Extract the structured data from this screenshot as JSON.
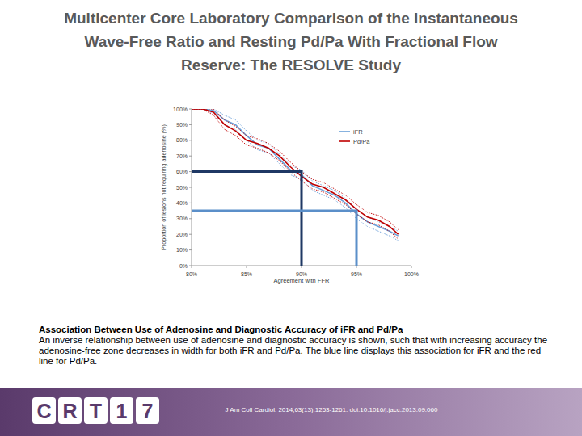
{
  "slide": {
    "title": [
      "Multicenter Core Laboratory Comparison of the Instantaneous",
      "Wave-Free Ratio and Resting Pd/Pa With Fractional Flow",
      "Reserve: The RESOLVE Study"
    ],
    "caption_heading": "Association Between Use of Adenosine and Diagnostic Accuracy of iFR and Pd/Pa",
    "caption_text": "An inverse relationship between use of adenosine and diagnostic accuracy is shown, such that with increasing accuracy the adenosine-free zone decreases in width for both iFR and Pd/Pa. The blue line displays this association for iFR and the red line for Pd/Pa.",
    "logo": "CRT17",
    "citation": "J Am Coll Cardiol. 2014;63(13):1253-1261. doi:10.1016/j.jacc.2013.09.060"
  },
  "chart_data": {
    "type": "line",
    "x_label": "Agreement with FFR",
    "y_label": "Proportion of lesions not requiring adenosine (%)",
    "x": [
      80,
      81,
      82,
      83,
      84,
      85,
      86,
      87,
      88,
      89,
      90,
      91,
      92,
      93,
      94,
      95,
      96,
      97,
      98,
      98.8
    ],
    "series": [
      {
        "name": "iFR",
        "color": "#6a9fd8",
        "line_style": "solid",
        "marker": "none",
        "values": [
          100,
          100,
          99,
          93,
          90,
          83,
          77,
          75,
          68,
          61,
          58,
          51,
          48,
          45,
          40,
          33,
          28,
          25,
          22,
          19
        ],
        "ci_lower": [
          100,
          100,
          97,
          90,
          87,
          80,
          74,
          72,
          65,
          58,
          55,
          48,
          45,
          42,
          37,
          30,
          25,
          22,
          19,
          16
        ],
        "ci_upper": [
          100,
          100,
          100,
          96,
          93,
          86,
          80,
          78,
          71,
          64,
          61,
          54,
          51,
          48,
          43,
          36,
          31,
          28,
          25,
          22
        ]
      },
      {
        "name": "Pd/Pa",
        "color": "#c00000",
        "line_style": "solid",
        "marker": "none",
        "values": [
          100,
          100,
          98,
          90,
          86,
          80,
          78,
          75,
          70,
          63,
          57,
          52,
          50,
          46,
          42,
          36,
          31,
          29,
          25,
          20
        ],
        "ci_lower": [
          100,
          100,
          96,
          87,
          83,
          77,
          75,
          72,
          67,
          60,
          54,
          49,
          47,
          43,
          39,
          33,
          28,
          26,
          22,
          17
        ],
        "ci_upper": [
          100,
          100,
          100,
          93,
          89,
          83,
          81,
          78,
          73,
          66,
          60,
          55,
          53,
          49,
          45,
          39,
          34,
          32,
          28,
          23
        ]
      }
    ],
    "reference_lines": [
      {
        "x": 90,
        "y": 60,
        "color": "#1f3864"
      },
      {
        "x": 95,
        "y": 35,
        "color": "#5b8fc9"
      }
    ],
    "xlim": [
      80,
      100
    ],
    "xticks": [
      {
        "value": 80,
        "label": "80%"
      },
      {
        "value": 85,
        "label": "85%"
      },
      {
        "value": 90,
        "label": "90%"
      },
      {
        "value": 95,
        "label": "95%"
      },
      {
        "value": 100,
        "label": "100%"
      }
    ],
    "ylim": [
      0,
      100
    ],
    "yticks": [
      {
        "value": 0,
        "label": "0%"
      },
      {
        "value": 10,
        "label": "10%"
      },
      {
        "value": 20,
        "label": "20%"
      },
      {
        "value": 30,
        "label": "30%"
      },
      {
        "value": 40,
        "label": "40%"
      },
      {
        "value": 50,
        "label": "50%"
      },
      {
        "value": 60,
        "label": "60%"
      },
      {
        "value": 70,
        "label": "70%"
      },
      {
        "value": 80,
        "label": "80%"
      },
      {
        "value": 90,
        "label": "90%"
      },
      {
        "value": 100,
        "label": "100%"
      }
    ],
    "grid": false,
    "legend": "upper-right"
  }
}
